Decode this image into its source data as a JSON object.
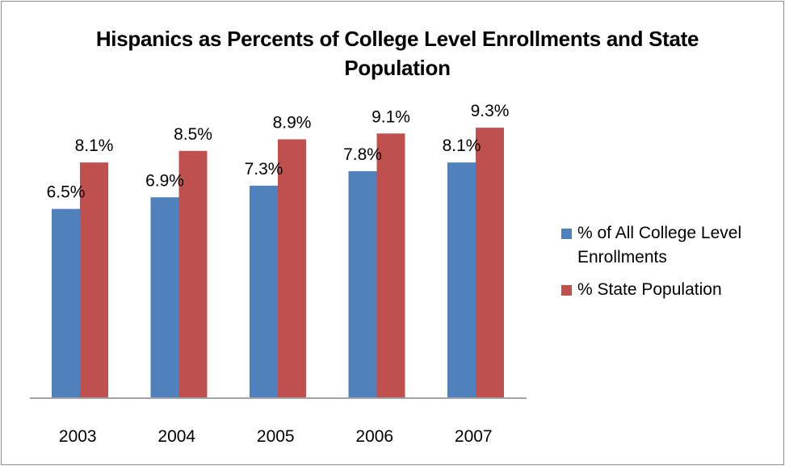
{
  "chart_data": {
    "type": "bar",
    "title": "Hispanics as Percents of College Level Enrollments and State Population",
    "categories": [
      "2003",
      "2004",
      "2005",
      "2006",
      "2007"
    ],
    "series": [
      {
        "name": "% of All College Level Enrollments",
        "values": [
          6.5,
          6.9,
          7.3,
          7.8,
          8.1
        ],
        "labels": [
          "6.5%",
          "6.9%",
          "7.3%",
          "7.8%",
          "8.1%"
        ],
        "color": "#4f81bd"
      },
      {
        "name": "% State Population",
        "values": [
          8.1,
          8.5,
          8.9,
          9.1,
          9.3
        ],
        "labels": [
          "8.1%",
          "8.5%",
          "8.9%",
          "9.1%",
          "9.3%"
        ],
        "color": "#c0504d"
      }
    ],
    "ylim": [
      0,
      9.4
    ],
    "xlabel": "",
    "ylabel": "",
    "grid": false,
    "legend_position": "right"
  }
}
